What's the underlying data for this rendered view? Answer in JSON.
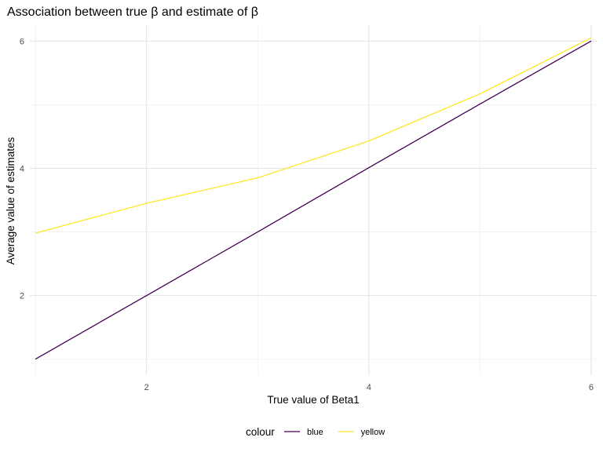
{
  "chart_data": {
    "type": "line",
    "title": "Association between true β and estimate of β",
    "xlabel": "True value of Beta1",
    "ylabel": "Average value of estimates",
    "x": [
      1,
      2,
      3,
      4,
      5,
      6
    ],
    "xlim": [
      0.95,
      6.05
    ],
    "ylim": [
      0.75,
      6.25
    ],
    "x_ticks": [
      2,
      4,
      6
    ],
    "y_ticks": [
      2,
      4,
      6
    ],
    "x_ticks_labels": [
      "2",
      "4",
      "6"
    ],
    "y_ticks_labels": [
      "2",
      "4",
      "6"
    ],
    "x_minor": [
      1,
      3,
      5
    ],
    "y_minor": [
      1,
      3,
      5
    ],
    "grid": true,
    "legend": {
      "title": "colour",
      "position": "bottom"
    },
    "series": [
      {
        "name": "blue",
        "color": "#440154",
        "values": [
          1.0,
          2.0,
          3.0,
          4.01,
          5.01,
          6.0
        ]
      },
      {
        "name": "yellow",
        "color": "#FDE725",
        "values": [
          2.98,
          3.45,
          3.85,
          4.43,
          5.17,
          6.05
        ]
      }
    ]
  }
}
